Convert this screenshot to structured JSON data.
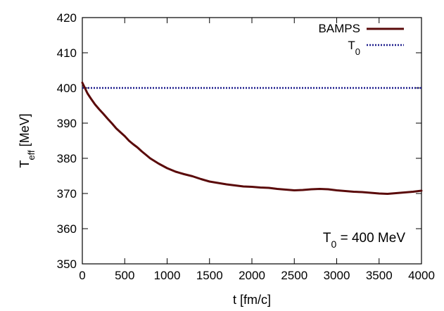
{
  "chart_data": {
    "type": "line",
    "xlabel": "t [fm/c]",
    "ylabel": {
      "main": "T",
      "sub": "eff",
      "rest": " [MeV]"
    },
    "xlim": [
      0,
      4000
    ],
    "ylim": [
      350,
      420
    ],
    "xticks": [
      "0",
      "500",
      "1000",
      "1500",
      "2000",
      "2500",
      "3000",
      "3500",
      "4000"
    ],
    "yticks": [
      "350",
      "360",
      "370",
      "380",
      "390",
      "400",
      "410",
      "420"
    ],
    "grid": false,
    "legend_position": "top-right",
    "annotation": {
      "main": "T",
      "sub": "0",
      "rest": " = 400 MeV"
    },
    "series": [
      {
        "name": "BAMPS",
        "name_parts": {
          "main": "BAMPS",
          "sub": ""
        },
        "style": "solid",
        "color": "#5a0a0a",
        "x": [
          0,
          30,
          60,
          100,
          150,
          200,
          250,
          300,
          350,
          400,
          450,
          500,
          550,
          600,
          650,
          700,
          750,
          800,
          900,
          1000,
          1100,
          1200,
          1300,
          1400,
          1500,
          1600,
          1700,
          1800,
          1900,
          2000,
          2100,
          2200,
          2300,
          2400,
          2500,
          2600,
          2700,
          2800,
          2900,
          3000,
          3100,
          3200,
          3300,
          3400,
          3500,
          3600,
          3700,
          3800,
          3900,
          4000
        ],
        "y": [
          401.5,
          400.0,
          398.5,
          397.0,
          395.3,
          393.9,
          392.6,
          391.2,
          389.9,
          388.5,
          387.4,
          386.3,
          385.0,
          384.0,
          383.1,
          382.0,
          381.0,
          380.0,
          378.5,
          377.2,
          376.2,
          375.5,
          374.9,
          374.1,
          373.4,
          373.0,
          372.6,
          372.3,
          372.0,
          371.9,
          371.7,
          371.6,
          371.3,
          371.1,
          370.9,
          371.0,
          371.2,
          371.3,
          371.2,
          370.9,
          370.7,
          370.5,
          370.4,
          370.2,
          370.0,
          369.9,
          370.1,
          370.3,
          370.5,
          370.8
        ]
      },
      {
        "name": "T0",
        "name_parts": {
          "main": "T",
          "sub": "0"
        },
        "style": "dotted",
        "color": "#1c1c8c",
        "x": [
          0,
          4000
        ],
        "y": [
          400,
          400
        ]
      }
    ]
  }
}
